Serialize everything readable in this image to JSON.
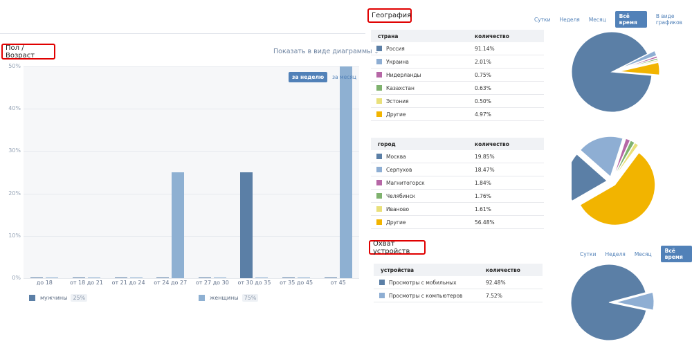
{
  "age_section": {
    "title": "Пол / Возраст",
    "diagram_link": "Показать в виде диаграммы",
    "tabs": [
      "за неделю",
      "за месяц"
    ],
    "active_tab": 0,
    "legend": [
      {
        "label": "мужчины",
        "pct": "25%",
        "color": "#5b7fa6"
      },
      {
        "label": "женщины",
        "pct": "75%",
        "color": "#8eb0d2"
      }
    ]
  },
  "geography": {
    "title": "География",
    "periods": [
      "Сутки",
      "Неделя",
      "Месяц",
      "Всё время",
      "В виде графиков"
    ],
    "active_period": 3,
    "countries": {
      "headers": [
        "страна",
        "количество"
      ],
      "rows": [
        {
          "name": "Россия",
          "value": "91.14%",
          "color": "#5b7fa6"
        },
        {
          "name": "Украина",
          "value": "2.01%",
          "color": "#8eaed3"
        },
        {
          "name": "Нидерланды",
          "value": "0.75%",
          "color": "#b667a6"
        },
        {
          "name": "Казахстан",
          "value": "0.63%",
          "color": "#7fb26e"
        },
        {
          "name": "Эстония",
          "value": "0.50%",
          "color": "#e9e07a"
        },
        {
          "name": "Другие",
          "value": "4.97%",
          "color": "#f2b400"
        }
      ]
    },
    "cities": {
      "headers": [
        "город",
        "количество"
      ],
      "rows": [
        {
          "name": "Москва",
          "value": "19.85%",
          "color": "#5b7fa6"
        },
        {
          "name": "Серпухов",
          "value": "18.47%",
          "color": "#8eaed3"
        },
        {
          "name": "Магнитогорск",
          "value": "1.84%",
          "color": "#b667a6"
        },
        {
          "name": "Челябинск",
          "value": "1.76%",
          "color": "#7fb26e"
        },
        {
          "name": "Иваново",
          "value": "1.61%",
          "color": "#e9e07a"
        },
        {
          "name": "Другие",
          "value": "56.48%",
          "color": "#f2b400"
        }
      ]
    }
  },
  "devices": {
    "title": "Охват устройств",
    "periods": [
      "Сутки",
      "Неделя",
      "Месяц",
      "Всё время"
    ],
    "active_period": 3,
    "headers": [
      "устройства",
      "количество"
    ],
    "rows": [
      {
        "name": "Просмотры с мобильных",
        "value": "92.48%",
        "color": "#5b7fa6"
      },
      {
        "name": "Просмотры с компьютеров",
        "value": "7.52%",
        "color": "#8eaed3"
      }
    ]
  },
  "chart_data": [
    {
      "type": "bar",
      "title": "Пол / Возраст",
      "categories": [
        "до 18",
        "от 18 до 21",
        "от 21 до 24",
        "от 24 до 27",
        "от 27 до 30",
        "от 30 до 35",
        "от 35 до 45",
        "от 45"
      ],
      "series": [
        {
          "name": "мужчины",
          "values": [
            0,
            0,
            0,
            0,
            0,
            25,
            0,
            0
          ],
          "color": "#5b7fa6"
        },
        {
          "name": "женщины",
          "values": [
            0,
            0,
            0,
            25,
            0,
            0,
            0,
            50
          ],
          "color": "#8eb0d2"
        }
      ],
      "yticks": [
        "0%",
        "10%",
        "20%",
        "30%",
        "40%",
        "50%"
      ],
      "ylim": [
        0,
        50
      ],
      "grid": true,
      "legend": "bottom"
    },
    {
      "type": "pie",
      "labels": [
        "Россия",
        "Украина",
        "Нидерланды",
        "Казахстан",
        "Эстония",
        "Другие"
      ],
      "values": [
        91.14,
        2.01,
        0.75,
        0.63,
        0.5,
        4.97
      ]
    },
    {
      "type": "pie",
      "labels": [
        "Москва",
        "Серпухов",
        "Магнитогорск",
        "Челябинск",
        "Иваново",
        "Другие"
      ],
      "values": [
        19.85,
        18.47,
        1.84,
        1.76,
        1.61,
        56.48
      ]
    },
    {
      "type": "pie",
      "labels": [
        "Просмотры с мобильных",
        "Просмотры с компьютеров"
      ],
      "values": [
        92.48,
        7.52
      ]
    }
  ]
}
